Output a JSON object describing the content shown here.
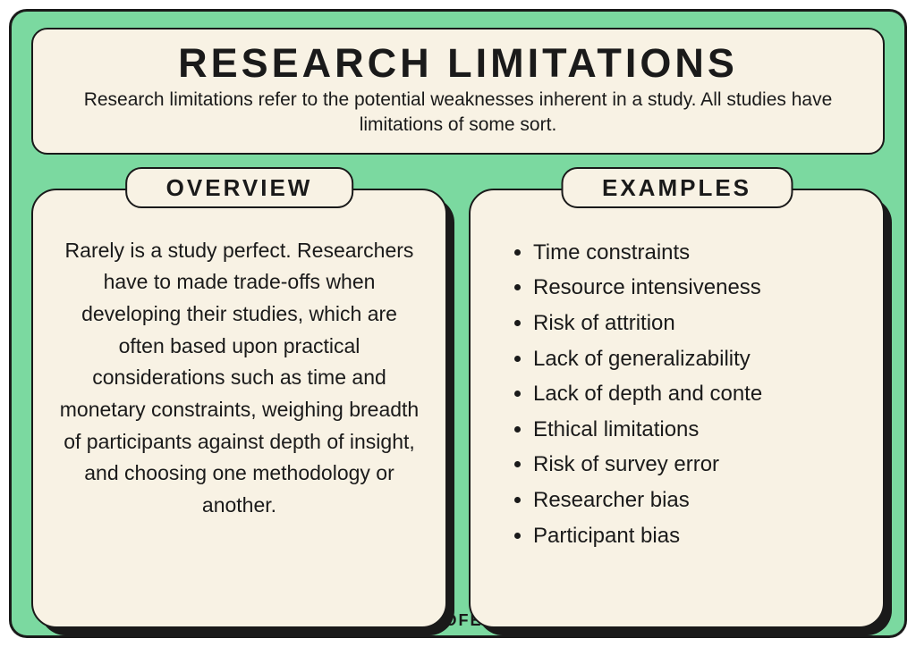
{
  "colors": {
    "background": "#7bd9a0",
    "card": "#f8f2e4",
    "border": "#1a1a1a",
    "text": "#1a1a1a"
  },
  "header": {
    "title": "RESEARCH LIMITATIONS",
    "subtitle": "Research limitations refer to the potential weaknesses inherent in a study. All studies have limitations of some sort."
  },
  "overview": {
    "tab": "OVERVIEW",
    "text": "Rarely is a study perfect. Researchers have to made trade-offs when developing their studies, which are often based upon practical considerations such as time and monetary constraints, weighing breadth of participants against depth of insight, and choosing one methodology or another."
  },
  "examples": {
    "tab": "EXAMPLES",
    "items": [
      "Time constraints",
      "Resource intensiveness",
      "Risk of attrition",
      "Lack of generalizability",
      "Lack of depth and conte",
      "Ethical limitations",
      "Risk of survey error",
      "Researcher bias",
      "Participant bias"
    ]
  },
  "footer": "HELPFULPROFESSOR.COM"
}
